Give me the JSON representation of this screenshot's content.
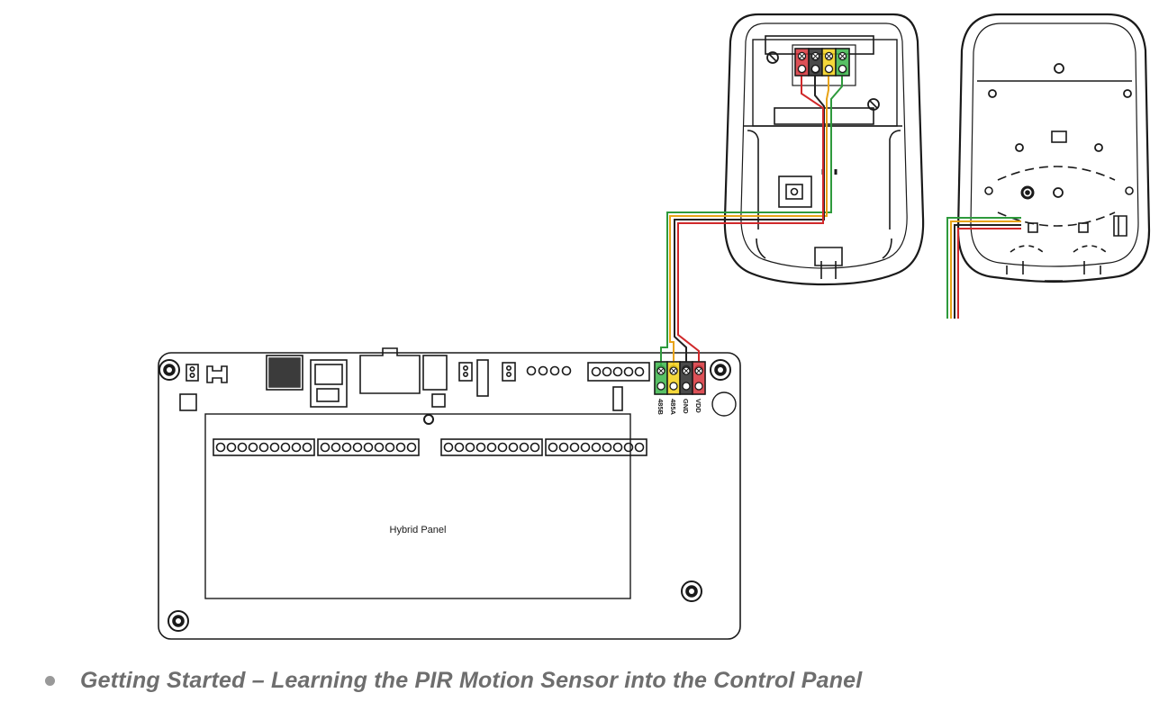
{
  "diagram": {
    "panel_label": "Hybrid Panel",
    "terminal_labels": [
      "485B",
      "485A",
      "GND",
      "VDD"
    ],
    "wire_colors": {
      "485B": "#2e9a3c",
      "485A": "#e8a317",
      "GND": "#222222",
      "VDD": "#d0282a"
    },
    "terminal_colors": {
      "green": "#3bb54a",
      "yellow": "#f2d019",
      "black": "#2a2a2a",
      "red": "#d6333a"
    },
    "line_color": "#1a1a1a"
  },
  "caption": {
    "bullet_icon": "bullet-dot",
    "text": "Getting Started – Learning the PIR Motion Sensor into the Control Panel"
  }
}
